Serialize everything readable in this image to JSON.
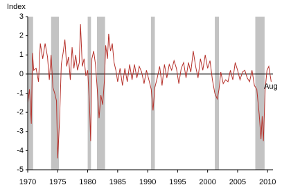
{
  "chart_data": {
    "type": "line",
    "y_label": "Index",
    "end_label": "Aug",
    "color": "#b5302a",
    "shade_color": "#c3c3c3",
    "shaded_periods": [
      [
        1969.95,
        1970.9
      ],
      [
        1973.9,
        1975.2
      ],
      [
        1980.0,
        1980.55
      ],
      [
        1981.55,
        1982.9
      ],
      [
        1990.55,
        1991.2
      ],
      [
        2001.2,
        2001.9
      ],
      [
        2007.95,
        2009.5
      ]
    ],
    "hline": 0,
    "xlim": [
      1970,
      2010.9
    ],
    "ylim": [
      -5,
      3
    ],
    "xticks": [
      1970,
      1975,
      1980,
      1985,
      1990,
      1995,
      2000,
      2005,
      2010
    ],
    "yticks": [
      -5,
      -4,
      -3,
      -2,
      -1,
      0,
      1,
      2,
      3
    ],
    "x": [
      1970.0,
      1970.3,
      1970.6,
      1970.8,
      1971.0,
      1971.4,
      1971.8,
      1972.1,
      1972.5,
      1972.9,
      1973.3,
      1973.6,
      1973.9,
      1974.2,
      1974.5,
      1974.8,
      1975.0,
      1975.3,
      1975.6,
      1975.9,
      1976.2,
      1976.5,
      1976.8,
      1977.1,
      1977.4,
      1977.7,
      1978.0,
      1978.3,
      1978.6,
      1978.8,
      1979.1,
      1979.4,
      1979.7,
      1980.0,
      1980.3,
      1980.5,
      1980.7,
      1981.0,
      1981.3,
      1981.6,
      1981.9,
      1982.2,
      1982.5,
      1982.8,
      1983.0,
      1983.3,
      1983.5,
      1983.8,
      1984.1,
      1984.4,
      1984.7,
      1985.0,
      1985.4,
      1985.8,
      1986.2,
      1986.6,
      1987.0,
      1987.4,
      1987.8,
      1988.2,
      1988.6,
      1989.0,
      1989.4,
      1989.8,
      1990.2,
      1990.6,
      1990.9,
      1991.2,
      1991.6,
      1992.0,
      1992.4,
      1992.8,
      1993.2,
      1993.6,
      1994.0,
      1994.4,
      1994.8,
      1995.2,
      1995.6,
      1996.0,
      1996.4,
      1996.8,
      1997.2,
      1997.6,
      1998.0,
      1998.4,
      1998.8,
      1999.2,
      1999.6,
      2000.0,
      2000.4,
      2000.8,
      2001.2,
      2001.6,
      2001.9,
      2002.2,
      2002.6,
      2003.0,
      2003.4,
      2003.8,
      2004.2,
      2004.6,
      2005.0,
      2005.4,
      2005.8,
      2006.2,
      2006.6,
      2007.0,
      2007.4,
      2007.8,
      2008.2,
      2008.6,
      2008.9,
      2009.1,
      2009.3,
      2009.6,
      2009.9,
      2010.2,
      2010.6
    ],
    "values": [
      -1.5,
      -0.8,
      -2.6,
      1.1,
      0.2,
      0.3,
      -0.4,
      1.6,
      0.8,
      1.6,
      0.9,
      -0.3,
      1.0,
      -0.7,
      -1.0,
      -1.4,
      -4.4,
      -2.5,
      0.5,
      1.1,
      1.8,
      0.4,
      0.9,
      -0.3,
      1.4,
      0.3,
      1.0,
      0.2,
      0.6,
      2.6,
      0.4,
      0.8,
      -0.1,
      0.2,
      -1.6,
      -3.5,
      0.8,
      1.2,
      0.5,
      -0.8,
      -2.3,
      -1.1,
      -1.6,
      -0.3,
      1.5,
      0.8,
      2.1,
      1.2,
      1.6,
      0.6,
      0.2,
      -0.4,
      0.3,
      -0.6,
      0.3,
      -0.4,
      0.5,
      -0.3,
      0.5,
      -0.2,
      0.4,
      0.1,
      -0.5,
      0.2,
      -0.3,
      -0.8,
      -1.9,
      -0.7,
      -0.2,
      0.4,
      -0.6,
      0.5,
      -0.2,
      0.5,
      0.2,
      0.7,
      0.3,
      -0.5,
      0.3,
      0.6,
      -0.2,
      0.6,
      0.1,
      1.2,
      0.4,
      -0.2,
      0.8,
      0.2,
      1.0,
      0.3,
      0.7,
      -0.3,
      -1.0,
      -1.3,
      -0.8,
      0.1,
      -0.5,
      -0.3,
      -0.4,
      0.2,
      -0.3,
      0.6,
      0.2,
      -0.3,
      0.1,
      0.2,
      -0.2,
      -0.4,
      0.2,
      -0.6,
      -0.8,
      -2.1,
      -3.4,
      -2.2,
      -3.5,
      -0.8,
      0.2,
      0.4,
      -0.4
    ]
  }
}
